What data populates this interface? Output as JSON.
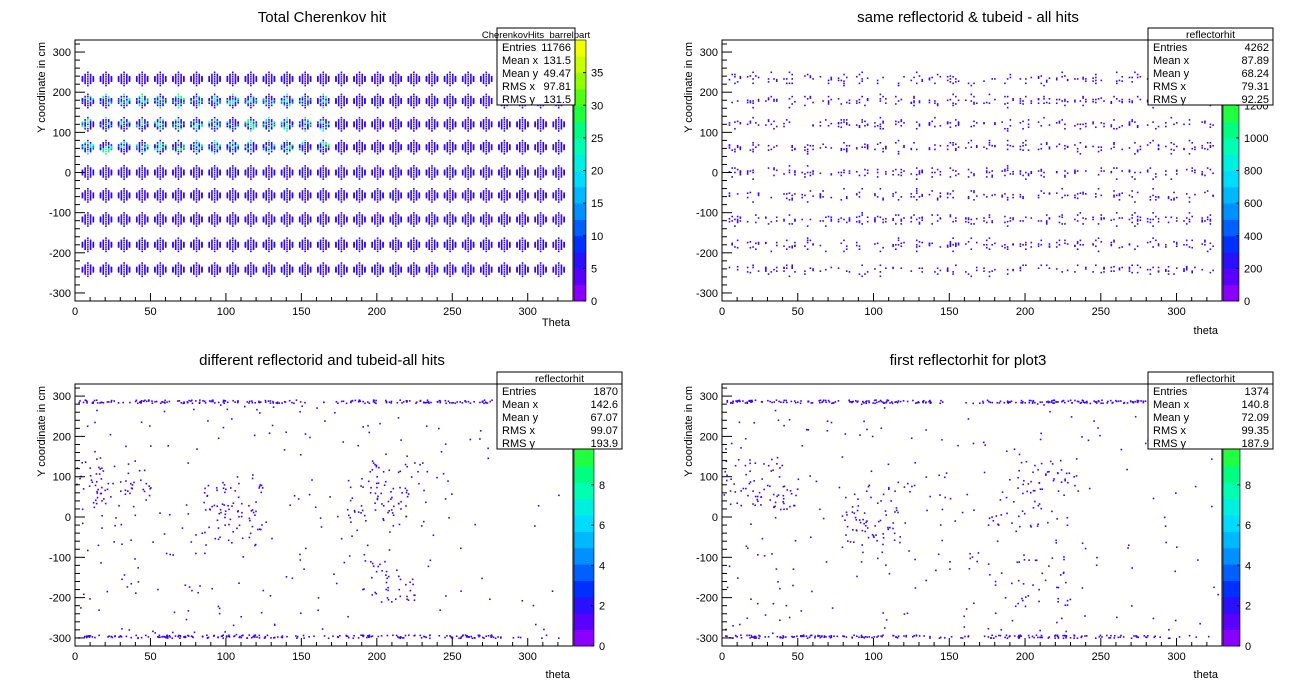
{
  "chart_data": [
    {
      "type": "heatmap",
      "title": "Total Cherenkov hit",
      "xlabel": "Theta",
      "ylabel": "Y coordinate in cm",
      "xlim": [
        0,
        330
      ],
      "ylim": [
        -320,
        330
      ],
      "xticks": [
        "0",
        "50",
        "100",
        "150",
        "200",
        "250",
        "300"
      ],
      "yticks": [
        "-300",
        "-200",
        "-100",
        "0",
        "100",
        "200",
        "300"
      ],
      "colorbar": {
        "min": 0,
        "max": 40,
        "ticks": [
          "0",
          "5",
          "10",
          "15",
          "20",
          "25",
          "30",
          "35"
        ]
      },
      "stats": {
        "name": "CherenkovHits_barrelpart",
        "rows": [
          [
            "Entries",
            "11766"
          ],
          [
            "Mean x",
            "131.5"
          ],
          [
            "Mean y",
            "49.47"
          ],
          [
            "RMS x",
            "97.81"
          ],
          [
            "RMS y",
            "131.5"
          ]
        ]
      },
      "pattern": "grid",
      "rows_y": [
        235,
        180,
        122,
        65,
        2,
        -55,
        -115,
        -178,
        -240
      ],
      "cols_x": [
        8,
        20,
        32,
        44,
        56,
        68,
        80,
        92,
        104,
        116,
        128,
        140,
        152,
        164,
        176,
        188,
        200,
        212,
        224,
        236,
        248,
        260,
        272,
        284,
        296,
        308,
        320
      ]
    },
    {
      "type": "heatmap",
      "title": "same reflectorid & tubeid - all hits",
      "xlabel": "theta",
      "ylabel": "Y coordinate in cm",
      "xlim": [
        0,
        330
      ],
      "ylim": [
        -320,
        330
      ],
      "xticks": [
        "0",
        "50",
        "100",
        "150",
        "200",
        "250",
        "300"
      ],
      "yticks": [
        "-300",
        "-200",
        "-100",
        "0",
        "100",
        "200",
        "300"
      ],
      "colorbar": {
        "min": 0,
        "max": 1600,
        "ticks": [
          "0",
          "200",
          "400",
          "600",
          "800",
          "1000",
          "1200",
          "1400"
        ]
      },
      "stats": {
        "name": "reflectorhit",
        "rows": [
          [
            "Entries",
            "4262"
          ],
          [
            "Mean x",
            "87.89"
          ],
          [
            "Mean y",
            "68.24"
          ],
          [
            "RMS x",
            "79.31"
          ],
          [
            "RMS y",
            "92.25"
          ]
        ]
      },
      "pattern": "sparse-grid",
      "rows_y": [
        235,
        180,
        122,
        65,
        2,
        -55,
        -115,
        -178,
        -240
      ],
      "cols_x": [
        8,
        20,
        32,
        44,
        56,
        68,
        80,
        92,
        104,
        116,
        128,
        140,
        152,
        164,
        176,
        188,
        200,
        212,
        224,
        236,
        248,
        260,
        272,
        284,
        296,
        308,
        320
      ]
    },
    {
      "type": "heatmap",
      "title": "different reflectorid and tubeid-all hits",
      "xlabel": "theta",
      "ylabel": "Y coordinate in cm",
      "xlim": [
        0,
        330
      ],
      "ylim": [
        -320,
        330
      ],
      "xticks": [
        "0",
        "50",
        "100",
        "150",
        "200",
        "250",
        "300"
      ],
      "yticks": [
        "-300",
        "-200",
        "-100",
        "0",
        "100",
        "200",
        "300"
      ],
      "colorbar": {
        "min": 0,
        "max": 13,
        "ticks": [
          "0",
          "2",
          "4",
          "6",
          "8",
          "10",
          "12"
        ]
      },
      "stats": {
        "name": "reflectorhit",
        "rows": [
          [
            "Entries",
            "1870"
          ],
          [
            "Mean x",
            "142.6"
          ],
          [
            "Mean y",
            "67.07"
          ],
          [
            "RMS x",
            "99.07"
          ],
          [
            "RMS y",
            "193.9"
          ]
        ]
      },
      "pattern": "scatter",
      "band_y": [
        288,
        -295
      ]
    },
    {
      "type": "heatmap",
      "title": "first reflectorhit for plot3",
      "xlabel": "theta",
      "ylabel": "Y coordinate in cm",
      "xlim": [
        0,
        330
      ],
      "ylim": [
        -320,
        330
      ],
      "xticks": [
        "0",
        "50",
        "100",
        "150",
        "200",
        "250",
        "300"
      ],
      "yticks": [
        "-300",
        "-200",
        "-100",
        "0",
        "100",
        "200",
        "300"
      ],
      "colorbar": {
        "min": 0,
        "max": 13,
        "ticks": [
          "0",
          "2",
          "4",
          "6",
          "8",
          "10",
          "12"
        ]
      },
      "stats": {
        "name": "reflectorhit",
        "rows": [
          [
            "Entries",
            "1374"
          ],
          [
            "Mean x",
            "140.8"
          ],
          [
            "Mean y",
            "72.09"
          ],
          [
            "RMS x",
            "99.35"
          ],
          [
            "RMS y",
            "187.9"
          ]
        ]
      },
      "pattern": "scatter",
      "band_y": [
        288,
        -295
      ]
    }
  ],
  "palette": [
    "#8a00ff",
    "#5a00ff",
    "#2a10ff",
    "#0030ff",
    "#0060ff",
    "#0090ff",
    "#00b8ff",
    "#00dcff",
    "#00f0e0",
    "#00ffb0",
    "#00ff80",
    "#20ff40",
    "#50ff10",
    "#90ff00",
    "#c8ff00",
    "#f0ff00"
  ],
  "colors": {
    "point": "#3a00ff",
    "point_alt": "#1a10c8",
    "hot": "#00ff90"
  }
}
